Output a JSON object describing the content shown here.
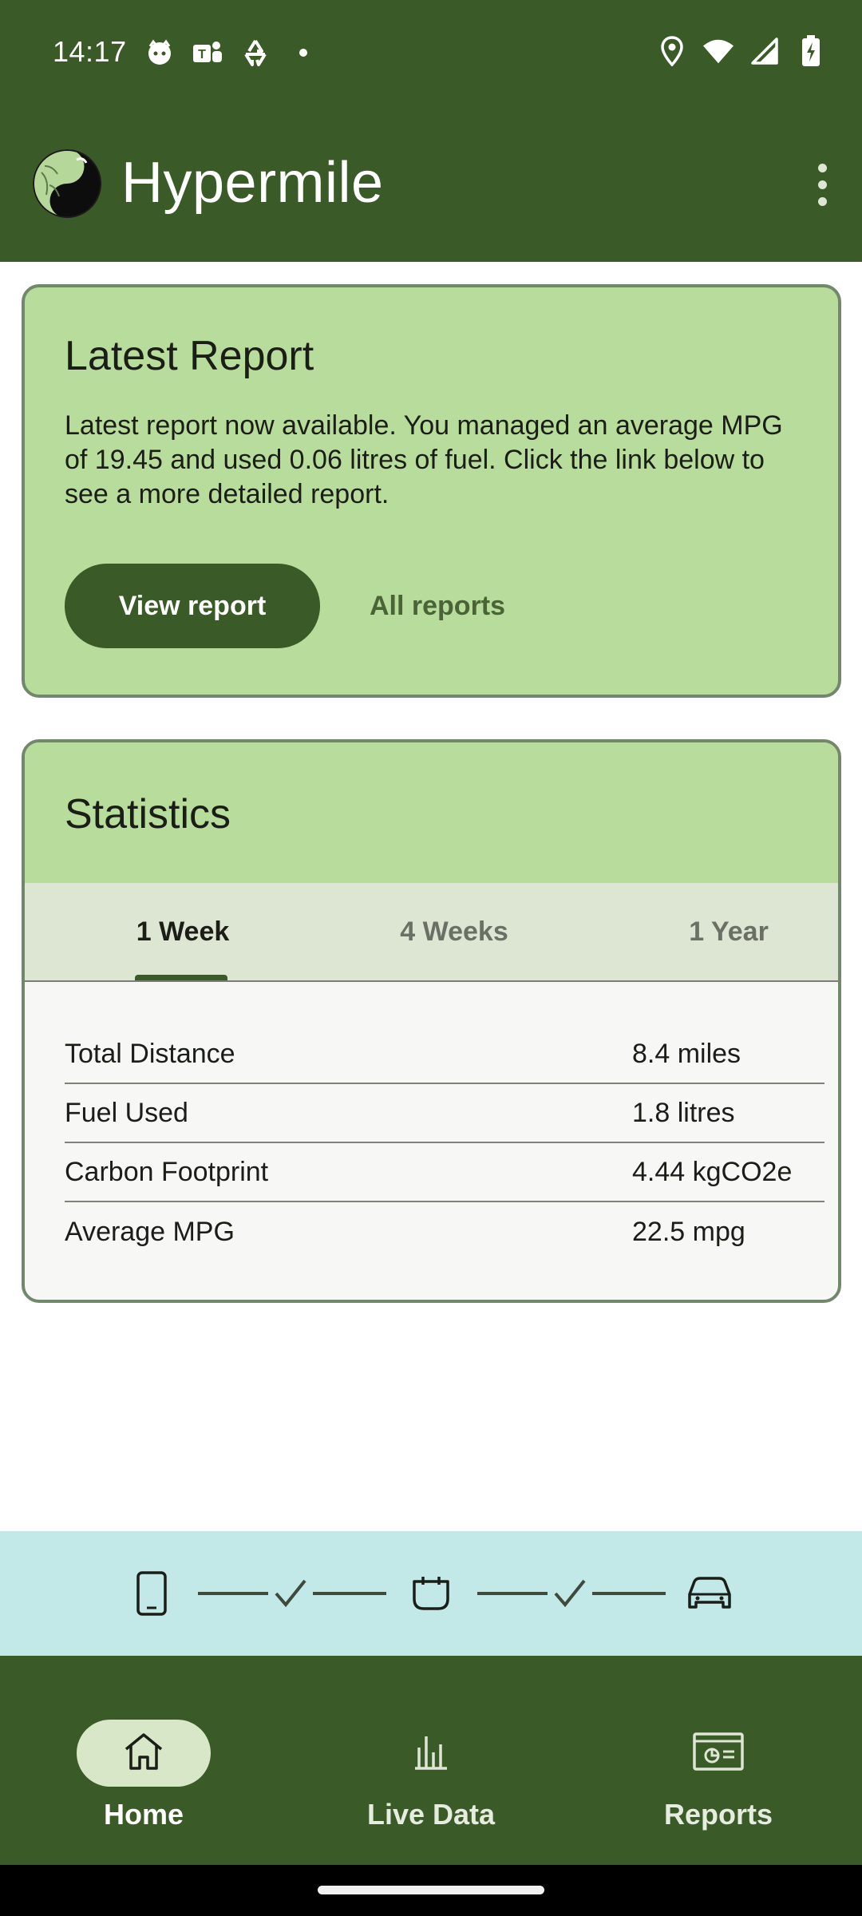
{
  "status_bar": {
    "time": "14:17",
    "left_icons": [
      "cat-face-icon",
      "teams-icon",
      "recycle-icon",
      "dot-icon"
    ],
    "right_icons": [
      "location-pin-icon",
      "wifi-icon",
      "cell-signal-icon",
      "battery-charging-icon"
    ]
  },
  "app_bar": {
    "title": "Hypermile",
    "logo": "yin-yang-leaf-logo",
    "menu_icon": "more-vert-icon"
  },
  "report_card": {
    "heading": "Latest Report",
    "body": "Latest report now available. You managed an average MPG of 19.45 and used 0.06 litres of fuel. Click the link below to see a more detailed report.",
    "view_button": "View report",
    "all_button": "All reports"
  },
  "statistics": {
    "heading": "Statistics",
    "tabs": [
      {
        "label": "1 Week",
        "selected": true
      },
      {
        "label": "4 Weeks",
        "selected": false
      },
      {
        "label": "1 Year",
        "selected": false
      }
    ],
    "rows": [
      {
        "label": "Total Distance",
        "value": "8.4 miles"
      },
      {
        "label": "Fuel Used",
        "value": "1.8 litres"
      },
      {
        "label": "Carbon Footprint",
        "value": "4.44 kgCO2e"
      },
      {
        "label": "Average MPG",
        "value": "22.5 mpg"
      }
    ]
  },
  "connection_status": {
    "items": [
      "phone-icon",
      "check-icon",
      "obd-adapter-icon",
      "check-icon",
      "car-icon"
    ],
    "phone_to_adapter": "connected",
    "adapter_to_car": "connected"
  },
  "bottom_nav": {
    "items": [
      {
        "label": "Home",
        "icon": "home-icon",
        "active": true
      },
      {
        "label": "Live Data",
        "icon": "bar-chart-icon",
        "active": false
      },
      {
        "label": "Reports",
        "icon": "report-window-icon",
        "active": false
      }
    ]
  },
  "colors": {
    "primary": "#3a5a27",
    "card_green": "#b8dc9b",
    "tab_bar": "#dde6d2",
    "connection_strip": "#c2e8e8",
    "nav_active_pill": "#d8e7c7"
  }
}
